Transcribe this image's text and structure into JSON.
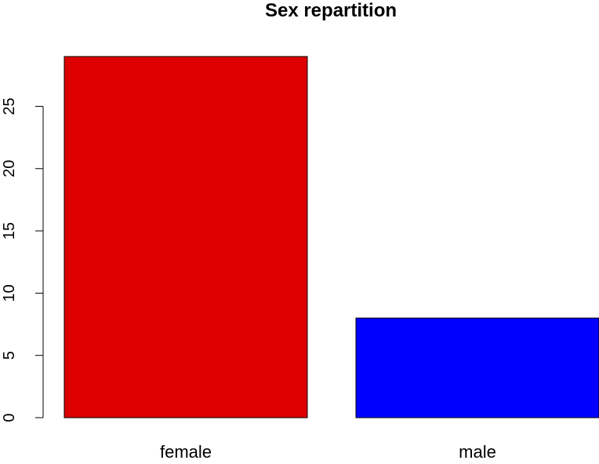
{
  "chart_data": {
    "type": "bar",
    "title": "Sex repartition",
    "xlabel": "",
    "ylabel": "",
    "categories": [
      "female",
      "male"
    ],
    "values": [
      29,
      8
    ],
    "colors": [
      "#dd0000",
      "#0000ff"
    ],
    "ylim": [
      0,
      29
    ],
    "yticks": [
      0,
      5,
      10,
      15,
      20,
      25
    ],
    "ytick_labels": [
      "0",
      "5",
      "10",
      "15",
      "20",
      "25"
    ],
    "grid": false,
    "legend": false
  }
}
